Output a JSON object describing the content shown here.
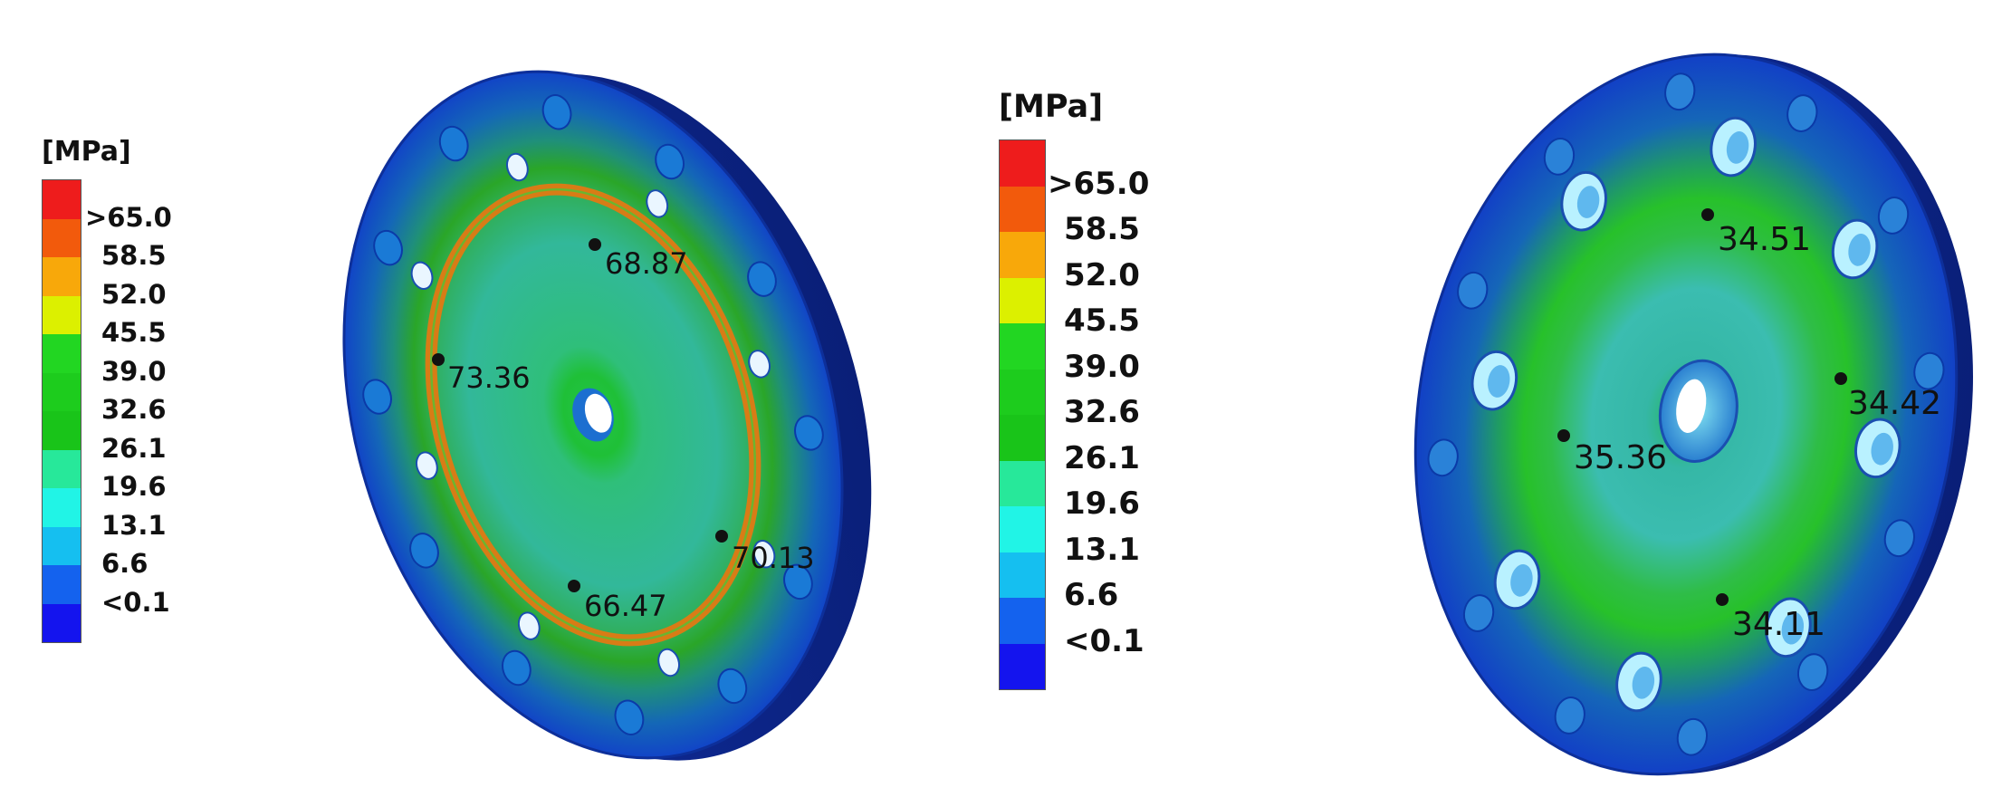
{
  "legend_left": {
    "unit": "[MPa]",
    "colors": [
      "#ee1c1c",
      "#f25a0c",
      "#f8a80a",
      "#dcf000",
      "#22d622",
      "#1dcc1d",
      "#19c419",
      "#27e89a",
      "#21f4e6",
      "#15bff0",
      "#1462ee",
      "#1414ee"
    ],
    "ticks": [
      ">65.0",
      "58.5",
      "52.0",
      "45.5",
      "39.0",
      "32.6",
      "26.1",
      "19.6",
      "13.1",
      "6.6",
      "<0.1"
    ]
  },
  "legend_right": {
    "unit": "[MPa]",
    "colors": [
      "#ee1c1c",
      "#f25a0c",
      "#f8a80a",
      "#dcf000",
      "#22d622",
      "#1dcc1d",
      "#19c419",
      "#27e89a",
      "#21f4e6",
      "#15bff0",
      "#1462ee",
      "#1414ee"
    ],
    "ticks": [
      ">65.0",
      "58.5",
      "52.0",
      "45.5",
      "39.0",
      "32.6",
      "26.1",
      "19.6",
      "13.1",
      "6.6",
      "<0.1"
    ]
  },
  "plate_left": {
    "probes": [
      {
        "name": "probe-top",
        "value": "68.87"
      },
      {
        "name": "probe-left",
        "value": "73.36"
      },
      {
        "name": "probe-right",
        "value": "70.13"
      },
      {
        "name": "probe-bottom",
        "value": "66.47"
      }
    ]
  },
  "plate_right": {
    "probes": [
      {
        "name": "probe-top",
        "value": "34.51"
      },
      {
        "name": "probe-right",
        "value": "34.42"
      },
      {
        "name": "probe-left",
        "value": "35.36"
      },
      {
        "name": "probe-bottom",
        "value": "34.11"
      }
    ]
  }
}
